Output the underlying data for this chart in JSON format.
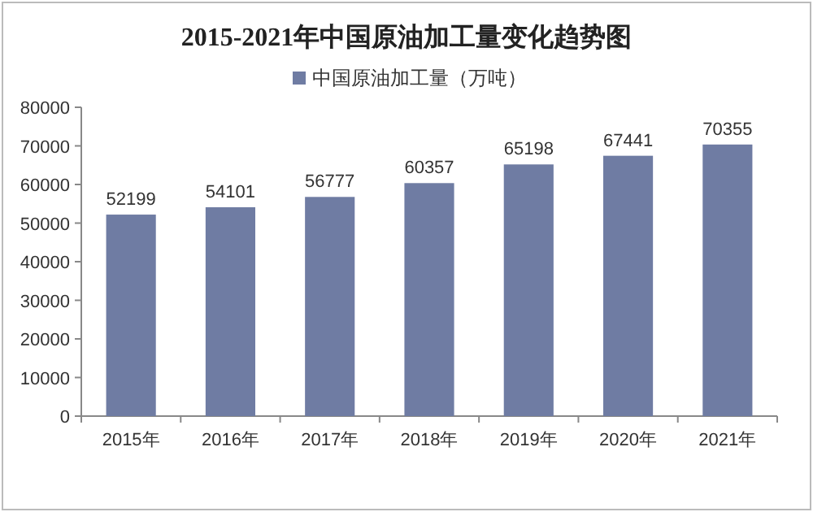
{
  "chart_data": {
    "type": "bar",
    "title": "2015-2021年中国原油加工量变化趋势图",
    "categories": [
      "2015年",
      "2016年",
      "2017年",
      "2018年",
      "2019年",
      "2020年",
      "2021年"
    ],
    "series": [
      {
        "name": "中国原油加工量（万吨）",
        "color": "#6f7ca3",
        "values": [
          52199,
          54101,
          56777,
          60357,
          65198,
          67441,
          70355
        ]
      }
    ],
    "ylim": [
      0,
      80000
    ],
    "yticks": [
      0,
      10000,
      20000,
      30000,
      40000,
      50000,
      60000,
      70000,
      80000
    ],
    "data_labels": true,
    "legend": "top",
    "grid": false
  }
}
